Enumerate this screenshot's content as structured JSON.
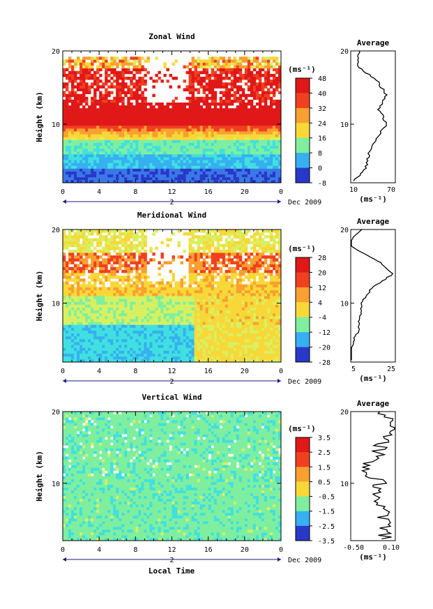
{
  "figure": {
    "xlabel": "Local Time"
  },
  "panels": [
    {
      "id": "zonal",
      "title": "Zonal Wind",
      "ylabel": "Height (km)",
      "x_ticks": [
        "0",
        "4",
        "8",
        "12",
        "16",
        "20",
        "0"
      ],
      "y_ticks": [
        "20",
        "10"
      ],
      "date_day": "2",
      "date_label": "Dec 2009",
      "unit": "(ms⁻¹)",
      "colorbar_ticks": [
        "48",
        "40",
        "32",
        "24",
        "16",
        "8",
        "0",
        "-8"
      ],
      "avg_title": "Average",
      "avg_x_ticks": [
        "10",
        "70"
      ],
      "avg_y_ticks": [
        "20",
        "10"
      ],
      "avg_unit": "(ms⁻¹)"
    },
    {
      "id": "meridional",
      "title": "Meridional Wind",
      "ylabel": "Height (km)",
      "x_ticks": [
        "0",
        "4",
        "8",
        "12",
        "16",
        "20",
        "0"
      ],
      "y_ticks": [
        "20",
        "10"
      ],
      "date_day": "2",
      "date_label": "Dec 2009",
      "unit": "(ms⁻¹)",
      "colorbar_ticks": [
        "28",
        "20",
        "12",
        "4",
        "-4",
        "-12",
        "-20",
        "-28"
      ],
      "avg_title": "Average",
      "avg_x_ticks": [
        "5",
        "25"
      ],
      "avg_y_ticks": [
        "20",
        "10"
      ],
      "avg_unit": "(ms⁻¹)"
    },
    {
      "id": "vertical",
      "title": "Vertical Wind",
      "ylabel": "Height (km)",
      "x_ticks": [
        "0",
        "4",
        "8",
        "12",
        "16",
        "20",
        "0"
      ],
      "y_ticks": [
        "20",
        "10"
      ],
      "date_day": "2",
      "date_label": "Dec 2009",
      "unit": "(ms⁻¹)",
      "colorbar_ticks": [
        "3.5",
        "2.5",
        "1.5",
        "0.5",
        "-0.5",
        "-1.5",
        "-2.5",
        "-3.5"
      ],
      "avg_title": "Average",
      "avg_x_ticks": [
        "-0.50",
        "0.10"
      ],
      "avg_y_ticks": [
        "20",
        "10"
      ],
      "avg_unit": "(ms⁻¹)"
    }
  ],
  "chart_data": [
    {
      "type": "heatmap",
      "title": "Zonal Wind",
      "xlabel": "",
      "ylabel": "Height (km)",
      "x_range_local_time_hours": [
        0,
        24
      ],
      "y_range_km": [
        2,
        20
      ],
      "color_range": [
        -8,
        48
      ],
      "color_levels": [
        -8,
        0,
        8,
        16,
        24,
        32,
        40,
        48
      ],
      "profile_heights_km": [
        20,
        18,
        16,
        14,
        12,
        10,
        8,
        6,
        4,
        2
      ],
      "profile_values": [
        22,
        18,
        45,
        58,
        48,
        58,
        45,
        35,
        30,
        12
      ]
    },
    {
      "type": "heatmap",
      "title": "Meridional Wind",
      "xlabel": "",
      "ylabel": "Height (km)",
      "x_range_local_time_hours": [
        0,
        24
      ],
      "y_range_km": [
        2,
        20
      ],
      "color_range": [
        -28,
        28
      ],
      "color_levels": [
        -28,
        -20,
        -12,
        -4,
        4,
        12,
        20,
        28
      ],
      "profile_heights_km": [
        20,
        18,
        16,
        14,
        12,
        10,
        8,
        6,
        4,
        2
      ],
      "profile_values": [
        10,
        3,
        16,
        24,
        14,
        10,
        9,
        8,
        5,
        4
      ]
    },
    {
      "type": "heatmap",
      "title": "Vertical Wind",
      "xlabel": "Local Time",
      "ylabel": "Height (km)",
      "x_range_local_time_hours": [
        0,
        24
      ],
      "y_range_km": [
        2,
        20
      ],
      "color_range": [
        -3.5,
        3.5
      ],
      "color_levels": [
        -3.5,
        -2.5,
        -1.5,
        -0.5,
        0.5,
        1.5,
        2.5,
        3.5
      ],
      "profile_heights_km": [
        20,
        18,
        16,
        14,
        12,
        10,
        8,
        6,
        4,
        2
      ],
      "profile_values": [
        -0.1,
        0.05,
        -0.05,
        -0.15,
        -0.3,
        -0.1,
        -0.15,
        -0.05,
        -0.05,
        -0.05
      ]
    }
  ]
}
